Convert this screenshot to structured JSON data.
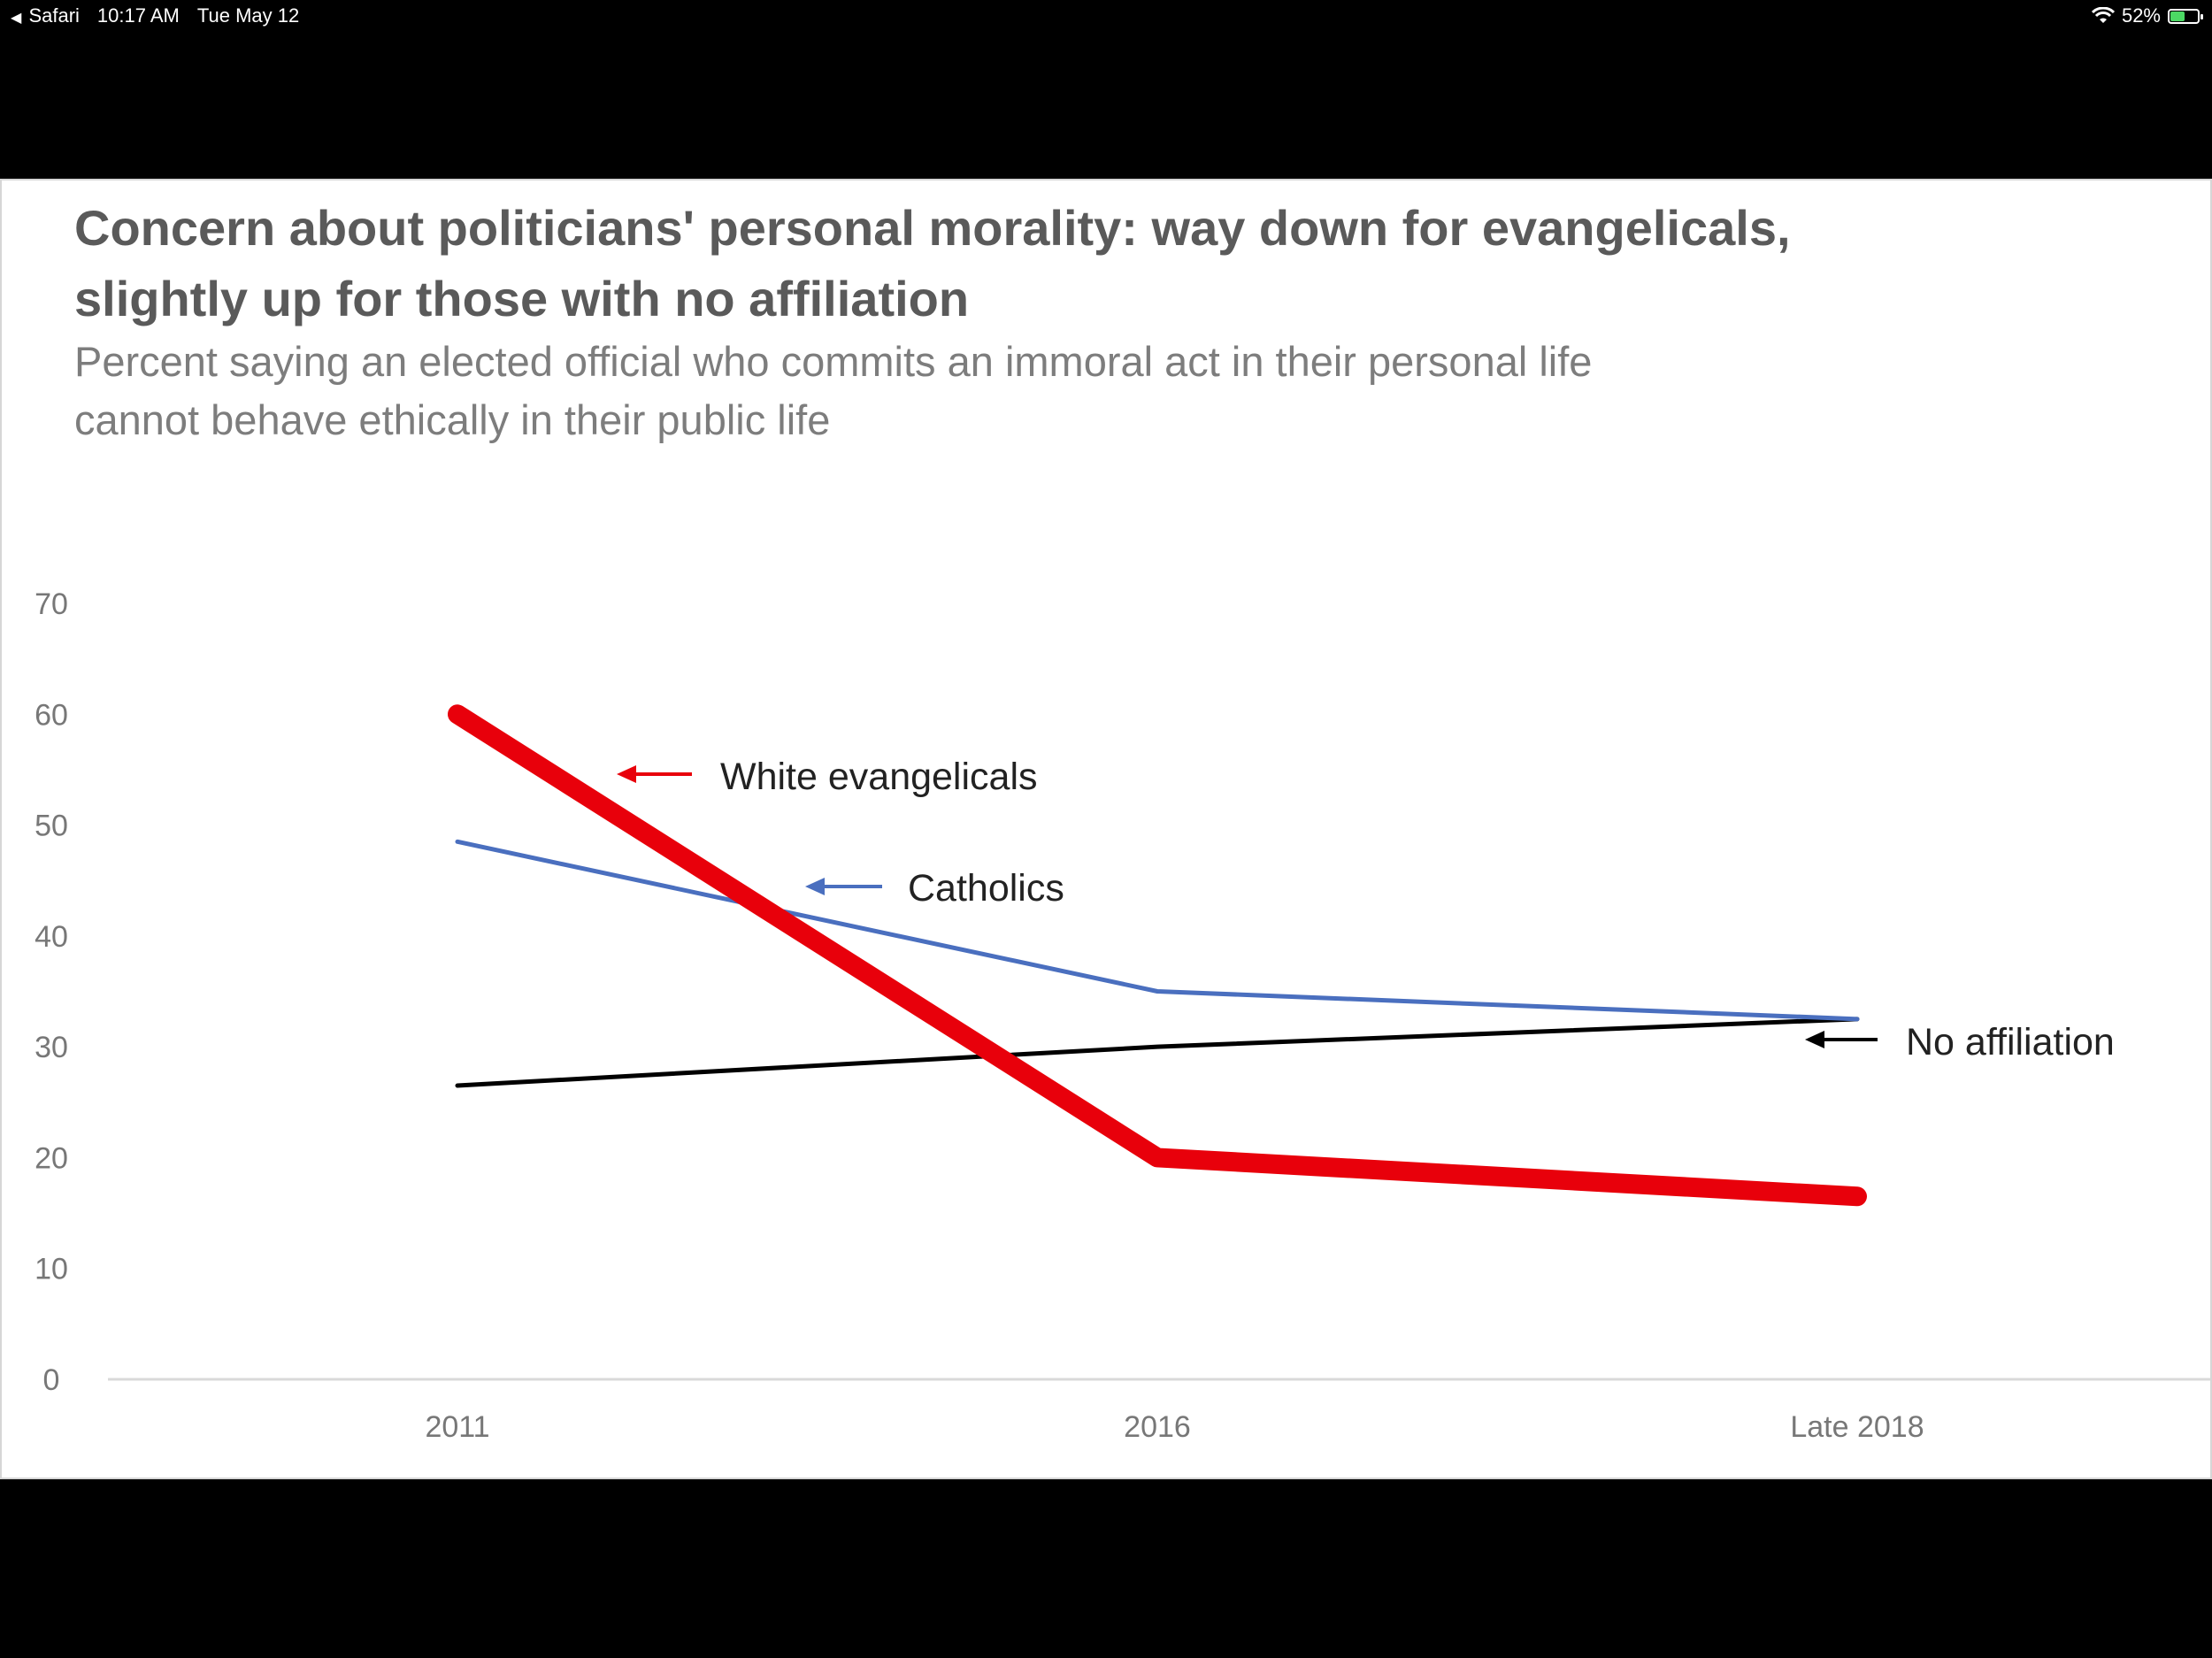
{
  "status_bar": {
    "app": "Safari",
    "time": "10:17 AM",
    "date": "Tue May 12",
    "battery": "52%",
    "battery_level": 0.52,
    "wifi_icon": "wifi-icon",
    "battery_icon": "battery-charging-icon",
    "back_icon": "back-arrow-icon"
  },
  "chart_data": {
    "type": "line",
    "title_line1": "Concern about politicians' personal morality: way down for evangelicals,",
    "title_line2": "slightly up for those with no affiliation",
    "subtitle_line1": "Percent saying an elected official who commits an immoral act in their personal life",
    "subtitle_line2": "cannot behave  ethically in their public life",
    "categories": [
      "2011",
      "2016",
      "Late 2018"
    ],
    "ylim": [
      0,
      70
    ],
    "yticks": [
      0,
      10,
      20,
      30,
      40,
      50,
      60,
      70
    ],
    "ytick_labels": [
      "0",
      "10",
      "20",
      "30",
      "40",
      "50",
      "60",
      "70"
    ],
    "grid": false,
    "series": [
      {
        "name": "White evangelicals",
        "values": [
          60,
          20,
          16.5
        ],
        "color": "#e8000b"
      },
      {
        "name": "Catholics",
        "values": [
          48.5,
          35,
          32.5
        ],
        "color": "#4a6fbf"
      },
      {
        "name": "No affiliation",
        "values": [
          26.5,
          30,
          32.5
        ],
        "color": "#000000"
      }
    ]
  }
}
